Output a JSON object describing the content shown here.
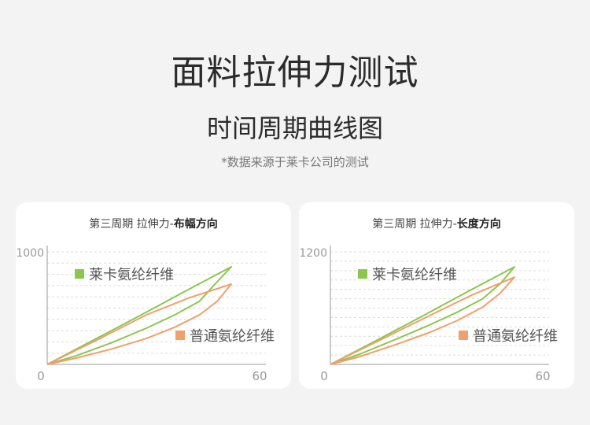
{
  "header": {
    "title": "面料拉伸力测试",
    "subtitle": "时间周期曲线图",
    "note": "*数据来源于莱卡公司的测试"
  },
  "colors": {
    "lycra": "#8cc64f",
    "regular": "#f0a06a"
  },
  "chart_data": [
    {
      "type": "line",
      "title_prefix": "第三周期 拉伸力-",
      "title_bold": "布幅方向",
      "xlim": [
        0,
        60
      ],
      "ylim": [
        0,
        1000
      ],
      "x_ticks": [
        "0",
        "60"
      ],
      "y_ticks": [
        "1000"
      ],
      "grid": true,
      "grid_step": 100,
      "series": [
        {
          "name": "莱卡氨纶纤维",
          "color": "#8cc64f",
          "loading": [
            [
              0,
              0
            ],
            [
              13,
              215
            ],
            [
              26,
              430
            ],
            [
              39,
              650
            ],
            [
              52,
              867
            ]
          ],
          "unloading": [
            [
              52,
              867
            ],
            [
              47,
              700
            ],
            [
              43,
              560
            ],
            [
              36,
              440
            ],
            [
              28,
              322
            ],
            [
              18,
              190
            ],
            [
              8,
              75
            ],
            [
              0,
              0
            ]
          ]
        },
        {
          "name": "普通氨纶纤维",
          "color": "#f0a06a",
          "loading": [
            [
              0,
              0
            ],
            [
              13,
              200
            ],
            [
              28,
              440
            ],
            [
              40,
              590
            ],
            [
              52,
              713
            ]
          ],
          "unloading": [
            [
              52,
              713
            ],
            [
              48,
              560
            ],
            [
              43,
              440
            ],
            [
              36,
              330
            ],
            [
              28,
              230
            ],
            [
              18,
              135
            ],
            [
              8,
              55
            ],
            [
              0,
              0
            ]
          ]
        }
      ]
    },
    {
      "type": "line",
      "title_prefix": "第三周期 拉伸力-",
      "title_bold": "长度方向",
      "xlim": [
        0,
        60
      ],
      "ylim": [
        0,
        1200
      ],
      "x_ticks": [
        "0",
        "60"
      ],
      "y_ticks": [
        "1200"
      ],
      "grid": true,
      "grid_step": 100,
      "series": [
        {
          "name": "莱卡氨纶纤维",
          "color": "#8cc64f",
          "loading": [
            [
              0,
              0
            ],
            [
              13,
              255
            ],
            [
              26,
              515
            ],
            [
              39,
              780
            ],
            [
              52,
              1040
            ]
          ],
          "unloading": [
            [
              52,
              1040
            ],
            [
              48,
              860
            ],
            [
              43,
              700
            ],
            [
              36,
              560
            ],
            [
              28,
              420
            ],
            [
              18,
              260
            ],
            [
              8,
              105
            ],
            [
              0,
              0
            ]
          ]
        },
        {
          "name": "普通氨纶纤维",
          "color": "#f0a06a",
          "loading": [
            [
              0,
              0
            ],
            [
              13,
              240
            ],
            [
              28,
              520
            ],
            [
              40,
              740
            ],
            [
              52,
              930
            ]
          ],
          "unloading": [
            [
              52,
              930
            ],
            [
              48,
              760
            ],
            [
              43,
              610
            ],
            [
              36,
              470
            ],
            [
              28,
              340
            ],
            [
              18,
              205
            ],
            [
              8,
              80
            ],
            [
              0,
              0
            ]
          ]
        }
      ]
    }
  ]
}
